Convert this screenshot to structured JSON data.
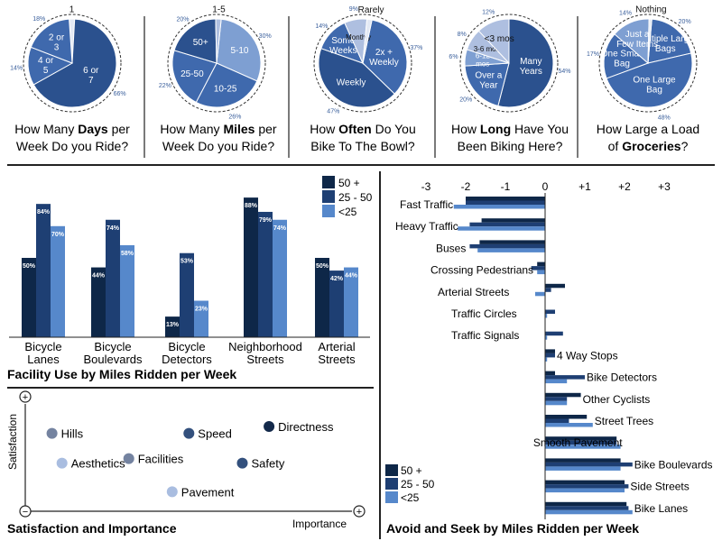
{
  "colors": {
    "c1": "#0e2748",
    "c2": "#1e3f73",
    "c3": "#5688cb",
    "pie_dark": "#2b518e",
    "pie_mid": "#3f69ad",
    "pie_light": "#7e9fd2",
    "pie_lighter": "#aebfe0",
    "pie_white": "#e3e9f4",
    "pct": "#3a5f9c",
    "dot_dark": "#13294a",
    "dot_mid": "#33507d",
    "dot_light": "#a9bde0",
    "dot_gray": "#7483a0"
  },
  "legend": [
    "50 +",
    "25 - 50",
    "<25"
  ],
  "pies": [
    {
      "title_parts": [
        "How Many ",
        "Days",
        " per",
        "Week Do you Ride?"
      ],
      "slices": [
        {
          "label": "1",
          "pct_label": "",
          "value": 2
        },
        {
          "label": "6 or 7",
          "pct_label": "66%",
          "value": 66
        },
        {
          "label": "4 or 5",
          "pct_label": "14%",
          "value": 14
        },
        {
          "label": "2 or 3",
          "pct_label": "18%",
          "value": 18
        }
      ]
    },
    {
      "title_parts": [
        "How Many ",
        "Miles",
        " per",
        "Week Do you Ride?"
      ],
      "slices": [
        {
          "label": "5-10",
          "pct_label": "30%",
          "value": 30
        },
        {
          "label": "10-25",
          "pct_label": "26%",
          "value": 26
        },
        {
          "label": "25-50",
          "pct_label": "22%",
          "value": 22
        },
        {
          "label": "50+",
          "pct_label": "20%",
          "value": 20
        },
        {
          "label": "1-5",
          "pct_label": "",
          "value": 2
        }
      ]
    },
    {
      "title_parts": [
        "How ",
        "Often",
        " Do You",
        "Bike To The Bowl?"
      ],
      "slices": [
        {
          "label": "2x + Weekly",
          "pct_label": "37%",
          "value": 37
        },
        {
          "label": "Weekly",
          "pct_label": "47%",
          "value": 47
        },
        {
          "label": "Some Weeks",
          "pct_label": "14%",
          "value": 14
        },
        {
          "label": "Monthly",
          "pct_label": "9%",
          "value": 9
        },
        {
          "label": "Rarely",
          "pct_label": "",
          "value": 2
        }
      ]
    },
    {
      "title_parts": [
        "How ",
        "Long",
        " Have You",
        "Been Biking Here?"
      ],
      "slices": [
        {
          "label": "Many Years",
          "pct_label": "54%",
          "value": 54
        },
        {
          "label": "Over a Year",
          "pct_label": "20%",
          "value": 20
        },
        {
          "label": "6-12 mos",
          "pct_label": "6%",
          "value": 6
        },
        {
          "label": "3-6 mos",
          "pct_label": "8%",
          "value": 8
        },
        {
          "label": "<3 mos",
          "pct_label": "12%",
          "value": 12
        }
      ]
    },
    {
      "title_parts": [
        "How Large a Load",
        "of ",
        "Groceries",
        "?"
      ],
      "slices": [
        {
          "label": "Multiple Large Bags",
          "pct_label": "20%",
          "value": 20
        },
        {
          "label": "One Large Bag",
          "pct_label": "48%",
          "value": 48
        },
        {
          "label": "One Small Bag",
          "pct_label": "17%",
          "value": 17
        },
        {
          "label": "Just a Few Items",
          "pct_label": "14%",
          "value": 14
        },
        {
          "label": "Nothing",
          "pct_label": "",
          "value": 1
        }
      ]
    }
  ],
  "chart_data": [
    {
      "type": "bar",
      "title": "Facility Use by Miles Ridden per Week",
      "categories": [
        "Bicycle Lanes",
        "Bicycle Boulevards",
        "Bicycle Detectors",
        "Neighborhood Streets",
        "Arterial Streets"
      ],
      "category_lines": [
        [
          "Bicycle",
          "Lanes"
        ],
        [
          "Bicycle",
          "Boulevards"
        ],
        [
          "Bicycle",
          "Detectors"
        ],
        [
          "Neighborhood",
          "Streets"
        ],
        [
          "Arterial",
          "Streets"
        ]
      ],
      "series": [
        {
          "name": "50 +",
          "values": [
            50,
            44,
            13,
            88,
            50
          ],
          "labels": [
            "50%",
            "44%",
            "13%",
            "88%",
            "50%"
          ]
        },
        {
          "name": "25 - 50",
          "values": [
            84,
            74,
            53,
            79,
            42
          ],
          "labels": [
            "84%",
            "74%",
            "53%",
            "79%",
            "42%"
          ]
        },
        {
          "name": "<25",
          "values": [
            70,
            58,
            23,
            74,
            44
          ],
          "labels": [
            "70%",
            "58%",
            "23%",
            "74%",
            "44%"
          ]
        }
      ],
      "ylim": [
        0,
        100
      ],
      "legend": "top-right"
    },
    {
      "type": "bar",
      "orientation": "horizontal",
      "title": "Avoid and Seek by Miles Ridden per Week",
      "x_ticks": [
        "-3",
        "-2",
        "-1",
        "0",
        "+1",
        "+2",
        "+3"
      ],
      "xlim": [
        -3,
        3
      ],
      "categories": [
        "Fast Traffic",
        "Heavy Traffic",
        "Buses",
        "Crossing Pedestrians",
        "Arterial Streets",
        "Traffic Circles",
        "Traffic Signals",
        "4 Way Stops",
        "Bike Detectors",
        "Other Cyclists",
        "Street Trees",
        "Smooth Pavement",
        "Bike Boulevards",
        "Side Streets",
        "Bike Lanes"
      ],
      "series": [
        {
          "name": "50 +",
          "values": [
            -2.0,
            -1.6,
            -1.65,
            -0.2,
            0.5,
            0.0,
            0.0,
            0.25,
            0.25,
            0.9,
            1.05,
            1.8,
            1.9,
            2.0,
            2.05
          ]
        },
        {
          "name": "25 - 50",
          "values": [
            -2.0,
            -1.9,
            -1.9,
            -0.35,
            0.15,
            0.25,
            0.45,
            0.25,
            1.0,
            0.55,
            0.6,
            1.8,
            2.2,
            2.1,
            2.1
          ]
        },
        {
          "name": "<25",
          "values": [
            -2.3,
            -2.2,
            -1.7,
            -0.2,
            -0.25,
            0.05,
            0.05,
            0.05,
            0.55,
            0.55,
            1.2,
            1.9,
            1.9,
            2.0,
            2.2
          ]
        }
      ],
      "legend": "bottom-left"
    },
    {
      "type": "scatter",
      "title": "Satisfaction and Importance",
      "xlabel": "Importance",
      "ylabel": "Satisfaction",
      "axis_minus": "−",
      "axis_plus": "+",
      "points": [
        {
          "label": "Hills",
          "x": 0.08,
          "y": 0.68,
          "color_key": "dot_gray"
        },
        {
          "label": "Speed",
          "x": 0.49,
          "y": 0.68,
          "color_key": "dot_mid"
        },
        {
          "label": "Directness",
          "x": 0.73,
          "y": 0.74,
          "color_key": "dot_dark"
        },
        {
          "label": "Facilities",
          "x": 0.31,
          "y": 0.46,
          "color_key": "dot_gray"
        },
        {
          "label": "Aesthetics",
          "x": 0.11,
          "y": 0.42,
          "color_key": "dot_light"
        },
        {
          "label": "Safety",
          "x": 0.65,
          "y": 0.42,
          "color_key": "dot_mid"
        },
        {
          "label": "Pavement",
          "x": 0.44,
          "y": 0.17,
          "color_key": "dot_light"
        }
      ]
    }
  ]
}
